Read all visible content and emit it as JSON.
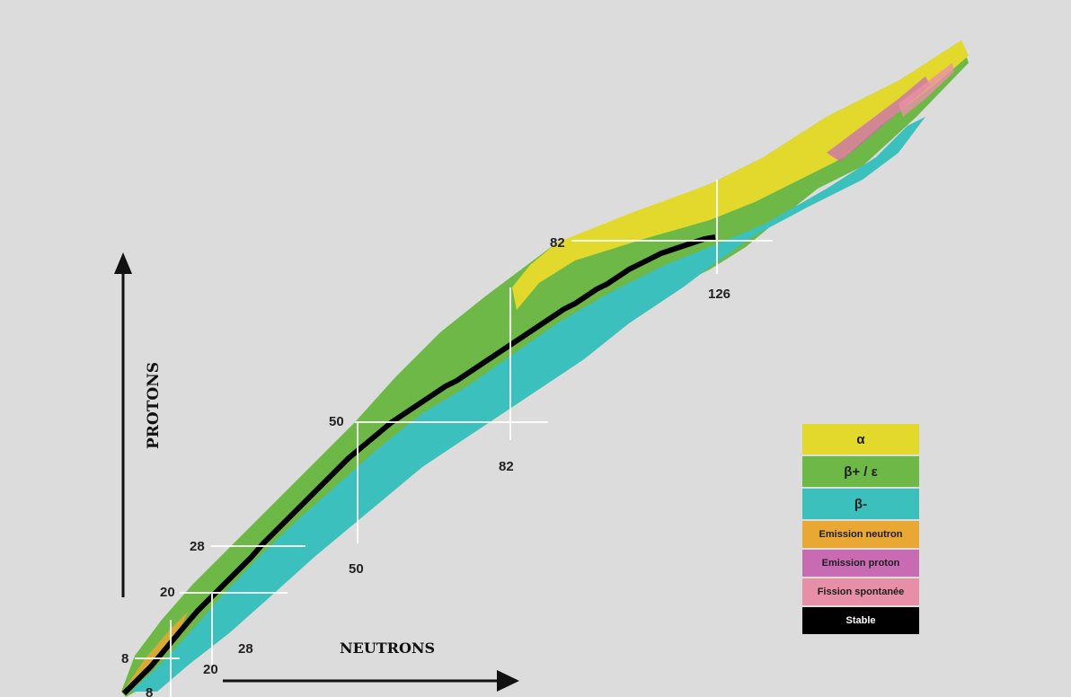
{
  "axes": {
    "y_label": "PROTONS",
    "x_label": "NEUTRONS"
  },
  "magic_numbers": {
    "protons": [
      "8",
      "20",
      "28",
      "50",
      "82"
    ],
    "neutrons": [
      "8",
      "20",
      "28",
      "50",
      "82",
      "126"
    ]
  },
  "legend": [
    {
      "label": "α",
      "color": "#e3d92c"
    },
    {
      "label": "β+ / ε",
      "color": "#6db846"
    },
    {
      "label": "β-",
      "color": "#3cc0bd"
    },
    {
      "label": "Emission neutron",
      "color": "#e9a733"
    },
    {
      "label": "Emission proton",
      "color": "#c96bb3"
    },
    {
      "label": "Fission spontanée",
      "color": "#e88fa8"
    },
    {
      "label": "Stable",
      "color": "#000000"
    }
  ]
}
